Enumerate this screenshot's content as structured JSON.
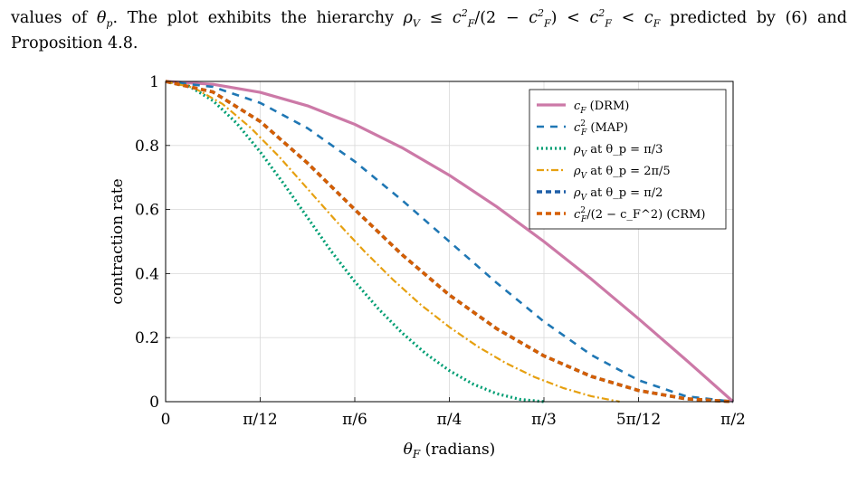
{
  "paragraph": {
    "line1_a": "values of ",
    "theta_p": "θ",
    "theta_p_sub": "p",
    "line1_b": ". The plot exhibits the hierarchy ",
    "hier_rho": "ρ",
    "hier_rho_sub": "V",
    "hier_le": " ≤ ",
    "hier_c1": "c",
    "hier_sub1": "F",
    "hier_sup1": "2",
    "hier_div": "/(2 − ",
    "hier_c2": "c",
    "hier_sub2": "F",
    "hier_sup2": "2",
    "hier_close": ") < ",
    "hier_c3": "c",
    "hier_sub3": "F",
    "hier_sup3": "2",
    "hier_lt2": " < ",
    "hier_c4": "c",
    "hier_sub4": "F",
    "line1_c": " predicted by (6) and",
    "line2": "Proposition 4.8."
  },
  "chart_data": {
    "type": "line",
    "xlabel_sym": "θ",
    "xlabel_sub": "F",
    "xlabel_text": " (radians)",
    "ylabel": "contraction rate",
    "xlim": [
      0,
      1.5708
    ],
    "ylim": [
      0,
      1
    ],
    "grid": true,
    "legend_position": "top-right",
    "x_ticks": [
      {
        "value": 0,
        "label": "0"
      },
      {
        "value": 0.2618,
        "label": "π/12"
      },
      {
        "value": 0.5236,
        "label": "π/6"
      },
      {
        "value": 0.7854,
        "label": "π/4"
      },
      {
        "value": 1.0472,
        "label": "π/3"
      },
      {
        "value": 1.309,
        "label": "5π/12"
      },
      {
        "value": 1.5708,
        "label": "π/2"
      }
    ],
    "y_ticks": [
      {
        "value": 0,
        "label": "0"
      },
      {
        "value": 0.2,
        "label": "0.2"
      },
      {
        "value": 0.4,
        "label": "0.4"
      },
      {
        "value": 0.6,
        "label": "0.6"
      },
      {
        "value": 0.8,
        "label": "0.8"
      },
      {
        "value": 1,
        "label": "1"
      }
    ],
    "series": [
      {
        "name": "c_F (DRM)",
        "legend_main": "c",
        "legend_sub": "F",
        "legend_sup": "",
        "legend_rest": " (DRM)",
        "color": "#cc79a7",
        "style": "solid",
        "x": [
          0,
          0.1309,
          0.2618,
          0.3927,
          0.5236,
          0.6545,
          0.7854,
          0.9163,
          1.0472,
          1.1781,
          1.309,
          1.4399,
          1.5708
        ],
        "y": [
          1,
          0.991,
          0.966,
          0.924,
          0.866,
          0.793,
          0.707,
          0.609,
          0.5,
          0.383,
          0.259,
          0.131,
          0
        ]
      },
      {
        "name": "c_F^2 (MAP)",
        "legend_main": "c",
        "legend_sub": "F",
        "legend_sup": "2",
        "legend_rest": " (MAP)",
        "color": "#1f77b4",
        "style": "dashed",
        "x": [
          0,
          0.1309,
          0.2618,
          0.3927,
          0.5236,
          0.6545,
          0.7854,
          0.9163,
          1.0472,
          1.1781,
          1.309,
          1.4399,
          1.5708
        ],
        "y": [
          1,
          0.983,
          0.933,
          0.854,
          0.75,
          0.629,
          0.5,
          0.371,
          0.25,
          0.146,
          0.067,
          0.017,
          0
        ]
      },
      {
        "name": "ρ_V at θ_p = π/3",
        "legend_main": "ρ",
        "legend_sub": "V",
        "legend_sup": "",
        "legend_rest": " at θ_p = π/3",
        "color": "#009e73",
        "style": "dotted",
        "x": [
          0,
          0.0654,
          0.1309,
          0.1963,
          0.2618,
          0.3272,
          0.3927,
          0.4581,
          0.5236,
          0.589,
          0.6545,
          0.7199,
          0.7854,
          0.8508,
          0.9163,
          0.9817,
          1.0472
        ],
        "y": [
          1,
          0.985,
          0.94,
          0.87,
          0.78,
          0.68,
          0.575,
          0.47,
          0.375,
          0.29,
          0.215,
          0.15,
          0.097,
          0.055,
          0.025,
          0.007,
          0
        ]
      },
      {
        "name": "ρ_V at θ_p = 2π/5",
        "legend_main": "ρ",
        "legend_sub": "V",
        "legend_sup": "",
        "legend_rest": " at θ_p = 2π/5",
        "color": "#e6a010",
        "style": "dashdot",
        "x": [
          0,
          0.0785,
          0.1571,
          0.2356,
          0.3142,
          0.3927,
          0.4712,
          0.5498,
          0.6283,
          0.7069,
          0.7854,
          0.8639,
          0.9425,
          1.021,
          1.0996,
          1.1781,
          1.2566
        ],
        "y": [
          1,
          0.98,
          0.93,
          0.855,
          0.765,
          0.665,
          0.565,
          0.47,
          0.382,
          0.302,
          0.233,
          0.172,
          0.12,
          0.077,
          0.043,
          0.017,
          0
        ]
      },
      {
        "name": "ρ_V at θ_p = π/2",
        "legend_main": "ρ",
        "legend_sub": "V",
        "legend_sup": "",
        "legend_rest": " at θ_p = π/2",
        "color": "#1f5fa8",
        "style": "dashed-thick",
        "x": [
          0,
          0.1309,
          0.2618,
          0.3927,
          0.5236,
          0.6545,
          0.7854,
          0.9163,
          1.0472,
          1.1781,
          1.309,
          1.4399,
          1.5708
        ],
        "y": [
          1,
          0.967,
          0.875,
          0.745,
          0.6,
          0.459,
          0.333,
          0.228,
          0.143,
          0.079,
          0.035,
          0.009,
          0
        ]
      },
      {
        "name": "c_F^2/(2 - c_F^2) (CRM)",
        "legend_main": "c",
        "legend_sub": "F",
        "legend_sup": "2",
        "legend_rest": "/(2 − c_F^2) (CRM)",
        "color": "#d55e00",
        "style": "dashed-thick",
        "x": [
          0,
          0.1309,
          0.2618,
          0.3927,
          0.5236,
          0.6545,
          0.7854,
          0.9163,
          1.0472,
          1.1781,
          1.309,
          1.4399,
          1.5708
        ],
        "y": [
          1,
          0.967,
          0.875,
          0.745,
          0.6,
          0.459,
          0.333,
          0.228,
          0.143,
          0.079,
          0.035,
          0.009,
          0
        ]
      }
    ]
  }
}
